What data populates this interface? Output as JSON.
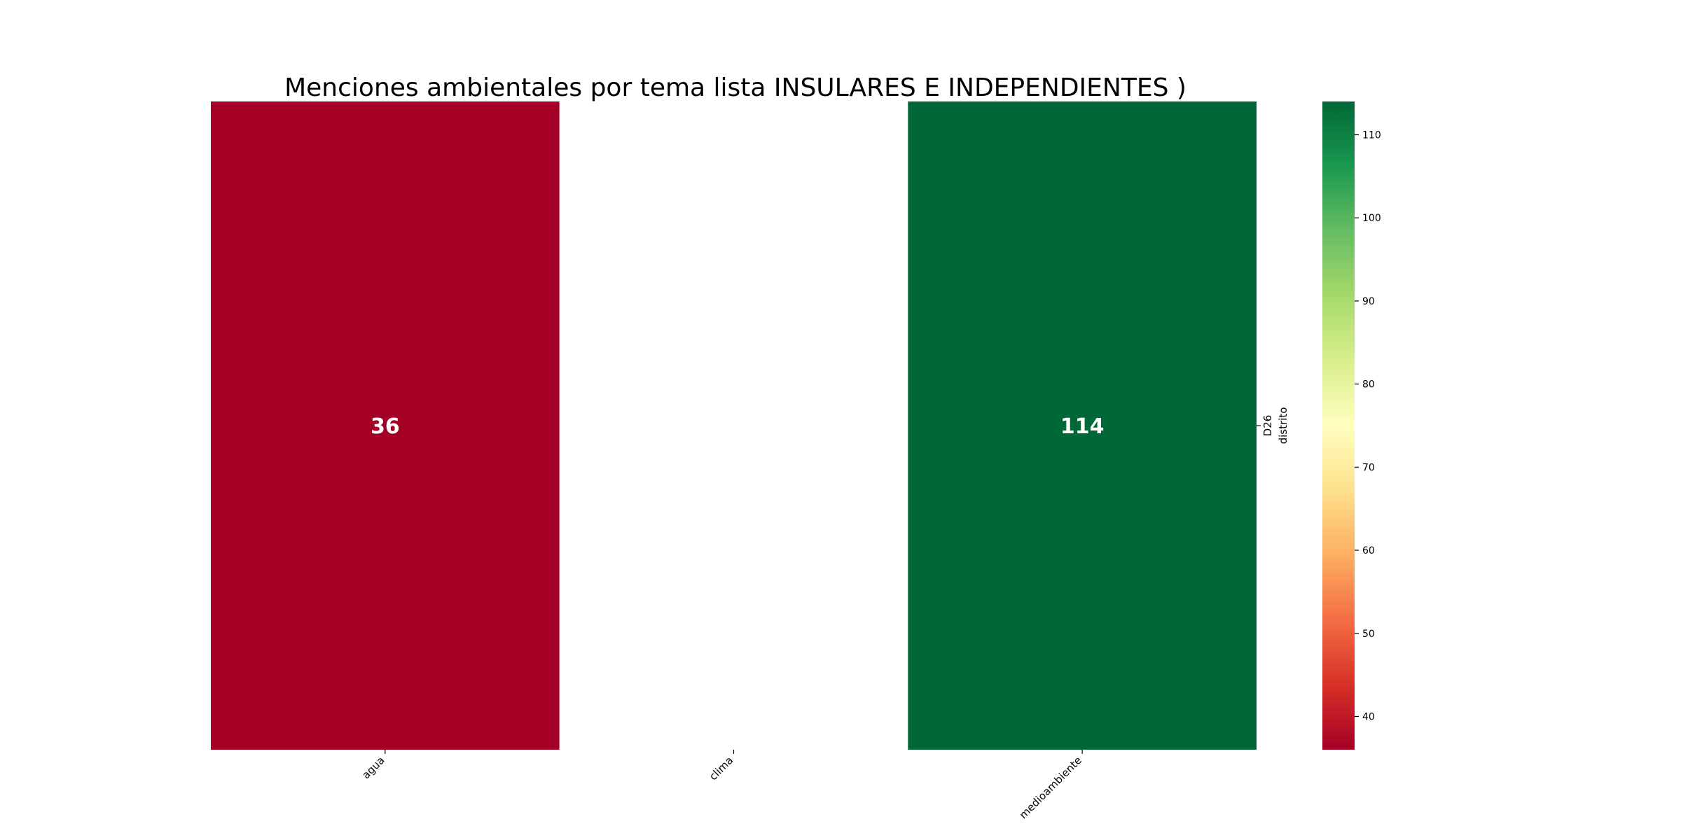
{
  "chart_data": {
    "type": "heatmap",
    "title": "Menciones ambientales por tema lista INSULARES E INDEPENDIENTES )",
    "x_categories": [
      "agua",
      "clima",
      "medioambiente"
    ],
    "y_categories": [
      "D26"
    ],
    "ylabel": "distrito",
    "values": [
      [
        36,
        null,
        114
      ]
    ],
    "colormap": "RdYlGn",
    "colorbar": {
      "min": 36,
      "max": 114,
      "ticks": [
        40,
        50,
        60,
        70,
        80,
        90,
        100,
        110
      ]
    },
    "annotations": true,
    "colors": {
      "low": "#a50026",
      "high": "#006837"
    }
  }
}
